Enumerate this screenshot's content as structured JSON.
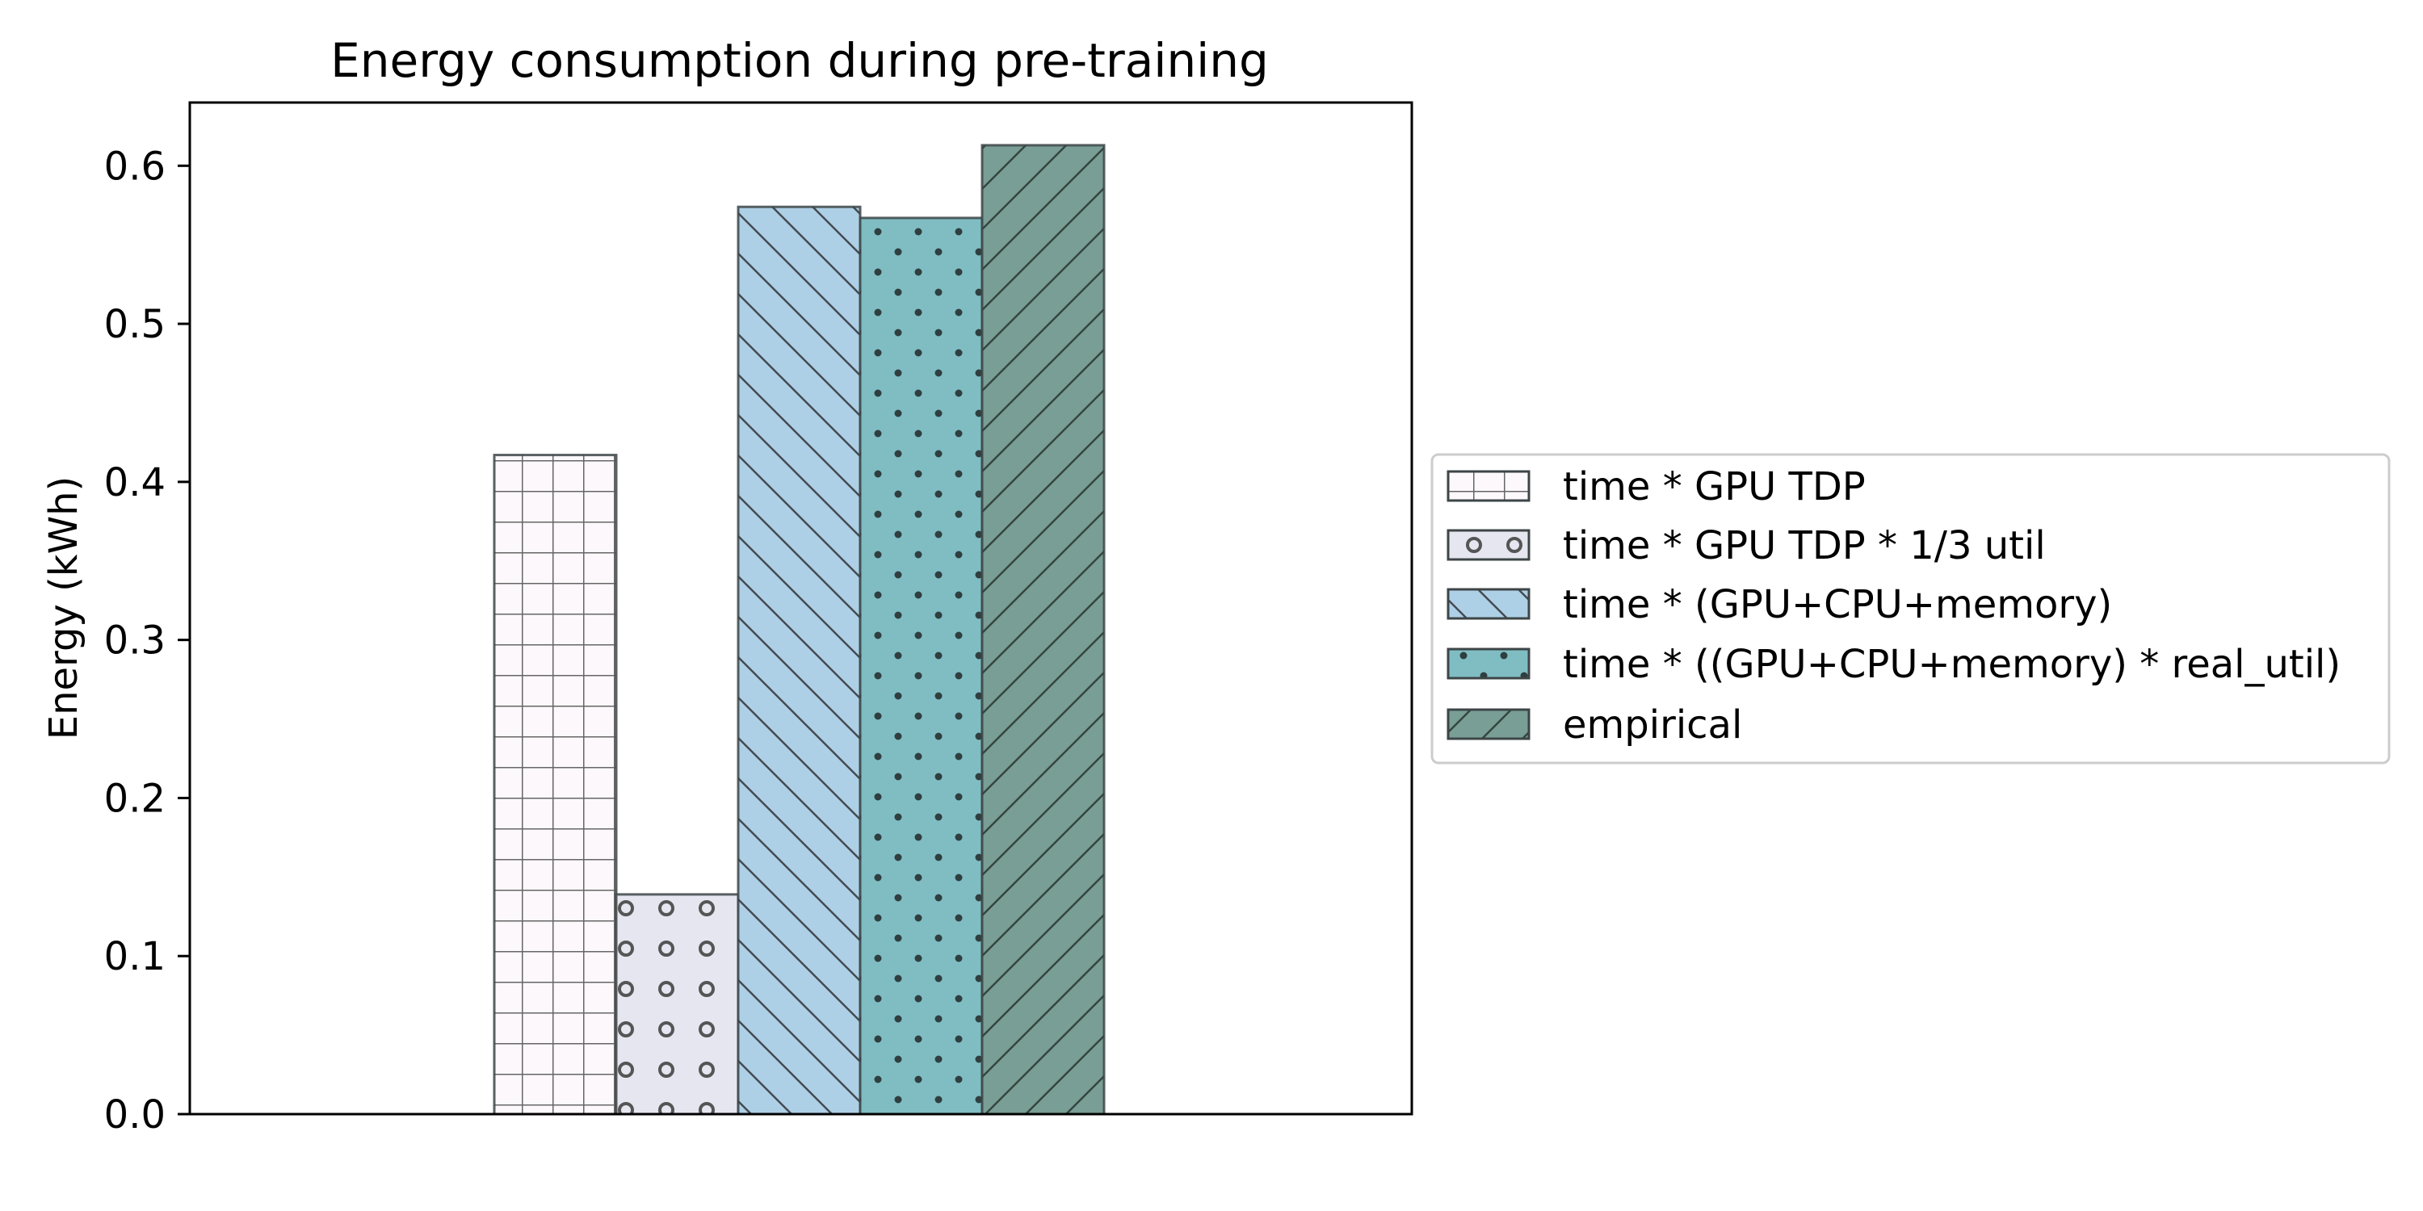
{
  "chart_data": {
    "type": "bar",
    "title": "Energy consumption during pre-training",
    "xlabel": "",
    "ylabel": "Energy (kWh)",
    "ylim": [
      0,
      0.64
    ],
    "yticks": [
      "0.0",
      "0.1",
      "0.2",
      "0.3",
      "0.4",
      "0.5",
      "0.6"
    ],
    "grid": false,
    "legend_position": "right",
    "series": [
      {
        "name": "time * GPU TDP",
        "value": 0.417,
        "color": "#fdf8fb",
        "hatch": "grid"
      },
      {
        "name": "time * GPU TDP * 1/3 util",
        "value": 0.139,
        "color": "#e5e6f0",
        "hatch": "circles"
      },
      {
        "name": "time * (GPU+CPU+memory)",
        "value": 0.574,
        "color": "#aed0e6",
        "hatch": "backslash"
      },
      {
        "name": "time * ((GPU+CPU+memory) * real_util)",
        "value": 0.567,
        "color": "#7fbdc3",
        "hatch": "dots"
      },
      {
        "name": "empirical",
        "value": 0.613,
        "color": "#799e95",
        "hatch": "slash"
      }
    ]
  }
}
